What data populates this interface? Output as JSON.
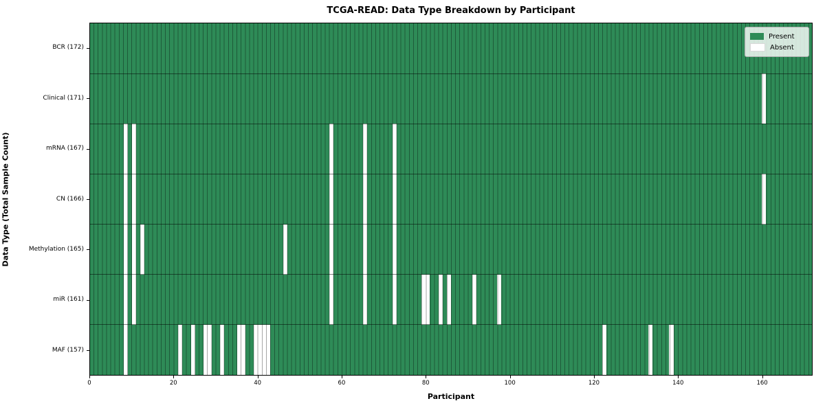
{
  "chart_data": {
    "type": "heatmap",
    "title": "TCGA-READ: Data Type Breakdown by Participant",
    "xlabel": "Participant",
    "ylabel": "Data Type (Total Sample Count)",
    "n_participants": 172,
    "x_range": [
      0,
      172
    ],
    "xticks": [
      0,
      20,
      40,
      60,
      80,
      100,
      120,
      140,
      160
    ],
    "grid": true,
    "rows": [
      {
        "label": "BCR (172)",
        "data_type": "BCR",
        "present_count": 172,
        "absent_participants": []
      },
      {
        "label": "Clinical (171)",
        "data_type": "Clinical",
        "present_count": 171,
        "absent_participants": [
          160
        ]
      },
      {
        "label": "mRNA (167)",
        "data_type": "mRNA",
        "present_count": 167,
        "absent_participants": [
          8,
          10,
          57,
          65,
          72
        ]
      },
      {
        "label": "CN (166)",
        "data_type": "CN",
        "present_count": 166,
        "absent_participants": [
          8,
          10,
          57,
          65,
          72,
          160
        ]
      },
      {
        "label": "Methylation (165)",
        "data_type": "Methylation",
        "present_count": 165,
        "absent_participants": [
          8,
          10,
          12,
          46,
          57,
          65,
          72
        ]
      },
      {
        "label": "miR (161)",
        "data_type": "miR",
        "present_count": 161,
        "absent_participants": [
          8,
          10,
          57,
          65,
          72,
          79,
          80,
          83,
          85,
          91,
          97
        ]
      },
      {
        "label": "MAF (157)",
        "data_type": "MAF",
        "present_count": 157,
        "absent_participants": [
          8,
          21,
          24,
          27,
          28,
          31,
          35,
          36,
          39,
          40,
          41,
          42,
          122,
          133,
          138
        ]
      }
    ],
    "legend": {
      "position": "upper right",
      "items": [
        {
          "label": "Present",
          "color": "#2e8b57"
        },
        {
          "label": "Absent",
          "color": "#ffffff"
        }
      ]
    },
    "colors": {
      "present": "#2e8b57",
      "absent": "#ffffff",
      "gridline": "rgba(0,0,0,0.35)",
      "border": "#000000"
    }
  }
}
